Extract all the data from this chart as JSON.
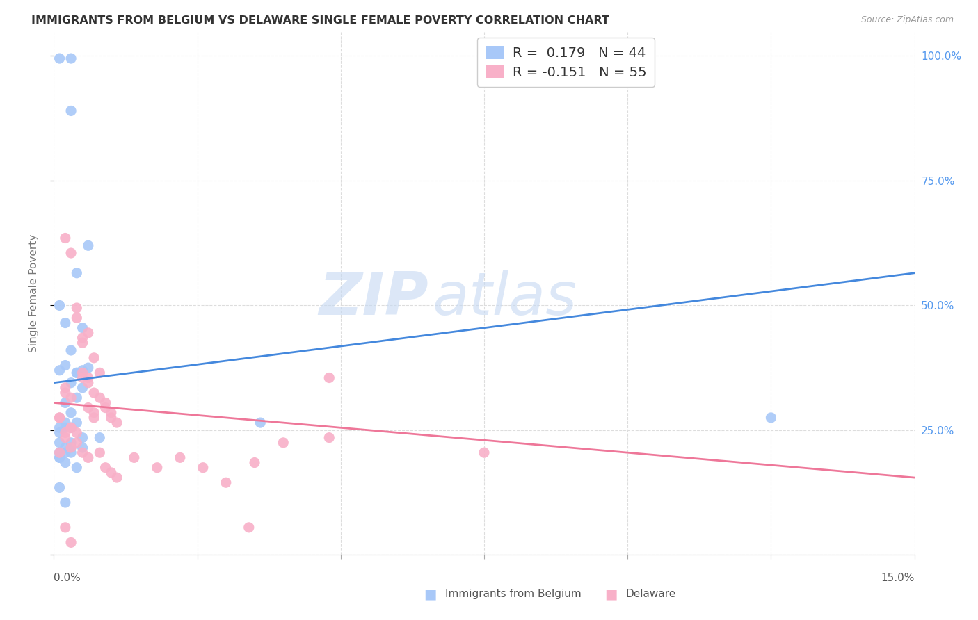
{
  "title": "IMMIGRANTS FROM BELGIUM VS DELAWARE SINGLE FEMALE POVERTY CORRELATION CHART",
  "source": "Source: ZipAtlas.com",
  "ylabel": "Single Female Poverty",
  "right_yticks": [
    0.0,
    0.25,
    0.5,
    0.75,
    1.0
  ],
  "right_yticklabels": [
    "",
    "25.0%",
    "50.0%",
    "75.0%",
    "100.0%"
  ],
  "legend1_R": "0.179",
  "legend1_N": "44",
  "legend2_R": "-0.151",
  "legend2_N": "55",
  "legend1_label": "Immigrants from Belgium",
  "legend2_label": "Delaware",
  "watermark_zip": "ZIP",
  "watermark_atlas": "atlas",
  "blue_color": "#a8c8f8",
  "pink_color": "#f8b0c8",
  "blue_line_color": "#4488dd",
  "pink_line_color": "#ee7799",
  "background_color": "#ffffff",
  "grid_color": "#dddddd",
  "blue_scatter_x": [
    0.001,
    0.003,
    0.003,
    0.006,
    0.004,
    0.001,
    0.002,
    0.003,
    0.004,
    0.005,
    0.006,
    0.001,
    0.002,
    0.004,
    0.003,
    0.005,
    0.004,
    0.002,
    0.003,
    0.001,
    0.001,
    0.002,
    0.003,
    0.004,
    0.005,
    0.002,
    0.001,
    0.001,
    0.002,
    0.003,
    0.003,
    0.004,
    0.005,
    0.003,
    0.002,
    0.001,
    0.001,
    0.002,
    0.036,
    0.005,
    0.008,
    0.001,
    0.002,
    0.125
  ],
  "blue_scatter_y": [
    0.995,
    0.995,
    0.89,
    0.62,
    0.565,
    0.5,
    0.38,
    0.41,
    0.365,
    0.37,
    0.375,
    0.37,
    0.465,
    0.365,
    0.345,
    0.335,
    0.315,
    0.265,
    0.285,
    0.255,
    0.245,
    0.255,
    0.255,
    0.265,
    0.455,
    0.305,
    0.225,
    0.195,
    0.185,
    0.225,
    0.215,
    0.175,
    0.215,
    0.205,
    0.205,
    0.195,
    0.205,
    0.215,
    0.265,
    0.235,
    0.235,
    0.135,
    0.105,
    0.275
  ],
  "pink_scatter_x": [
    0.001,
    0.001,
    0.002,
    0.003,
    0.004,
    0.005,
    0.005,
    0.006,
    0.007,
    0.008,
    0.002,
    0.002,
    0.003,
    0.004,
    0.005,
    0.006,
    0.006,
    0.007,
    0.008,
    0.009,
    0.009,
    0.01,
    0.01,
    0.011,
    0.003,
    0.002,
    0.002,
    0.004,
    0.005,
    0.003,
    0.004,
    0.006,
    0.007,
    0.007,
    0.008,
    0.009,
    0.01,
    0.011,
    0.04,
    0.048,
    0.014,
    0.018,
    0.022,
    0.026,
    0.03,
    0.034,
    0.002,
    0.003,
    0.005,
    0.006,
    0.001,
    0.003,
    0.048,
    0.075,
    0.035
  ],
  "pink_scatter_y": [
    0.275,
    0.275,
    0.635,
    0.605,
    0.495,
    0.435,
    0.425,
    0.445,
    0.395,
    0.365,
    0.335,
    0.325,
    0.315,
    0.475,
    0.365,
    0.355,
    0.345,
    0.325,
    0.315,
    0.305,
    0.295,
    0.285,
    0.275,
    0.265,
    0.255,
    0.245,
    0.235,
    0.225,
    0.355,
    0.255,
    0.245,
    0.295,
    0.285,
    0.275,
    0.205,
    0.175,
    0.165,
    0.155,
    0.225,
    0.355,
    0.195,
    0.175,
    0.195,
    0.175,
    0.145,
    0.055,
    0.055,
    0.215,
    0.205,
    0.195,
    0.205,
    0.025,
    0.235,
    0.205,
    0.185
  ],
  "xmin": 0.0,
  "xmax": 0.15,
  "ymin": 0.0,
  "ymax": 1.05,
  "blue_trend_x": [
    0.0,
    0.15
  ],
  "blue_trend_y": [
    0.345,
    0.565
  ],
  "pink_trend_x": [
    0.0,
    0.15
  ],
  "pink_trend_y": [
    0.305,
    0.155
  ]
}
